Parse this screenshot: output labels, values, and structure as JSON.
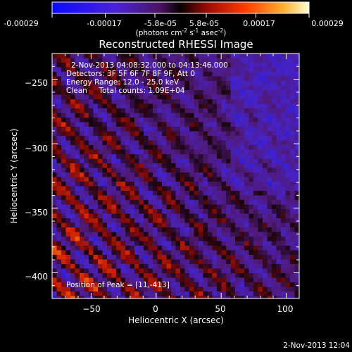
{
  "colorbar": {
    "tick_labels": [
      "-0.00029",
      "-0.00017",
      "-5.8e-05",
      "5.8e-05",
      "0.00017",
      "0.00029"
    ],
    "tick_values": [
      -0.00029,
      -0.00017,
      -5.8e-05,
      5.8e-05,
      0.00017,
      0.00029
    ],
    "range": [
      -0.00029,
      0.00029
    ],
    "units_prefix": "(photons cm",
    "units_exp1": "-2",
    "units_mid": " s",
    "units_exp2": "-1",
    "units_mid2": " asec",
    "units_exp3": "-2",
    "units_suffix": ")",
    "colors": [
      "#1010ff",
      "#5a1fd0",
      "#6a2aa8",
      "#2a0a10",
      "#a01010",
      "#ff3000",
      "#ffa020",
      "#ffffc0"
    ]
  },
  "chart_data": {
    "type": "heatmap",
    "title": "Reconstructed RHESSI Image",
    "xlabel": "Heliocentric X (arcsec)",
    "ylabel": "Heliocentric Y (arcsec)",
    "xlim": [
      -80,
      110
    ],
    "ylim": [
      -420,
      -230
    ],
    "x_ticks": [
      -50,
      0,
      50,
      100
    ],
    "y_ticks": [
      -250,
      -300,
      -350,
      -400
    ],
    "x_tick_labels": [
      "−50",
      "0",
      "50",
      "100"
    ],
    "y_tick_labels": [
      "−250",
      "−300",
      "−350",
      "−400"
    ],
    "annotations": [
      "2-Nov-2013 04:08:32.000 to 04:13:46.000",
      "Detectors: 3F 5F 6F 7F 8F 9F, Att 0",
      "Energy Range: 12.0 - 25.0 keV",
      "Clean     Total counts: 1.09E+04"
    ],
    "peak_label": "Position of Peak = [11,-413]",
    "peak": [
      11,
      -413
    ]
  },
  "footer": {
    "timestamp": "2-Nov-2013 12:04"
  }
}
